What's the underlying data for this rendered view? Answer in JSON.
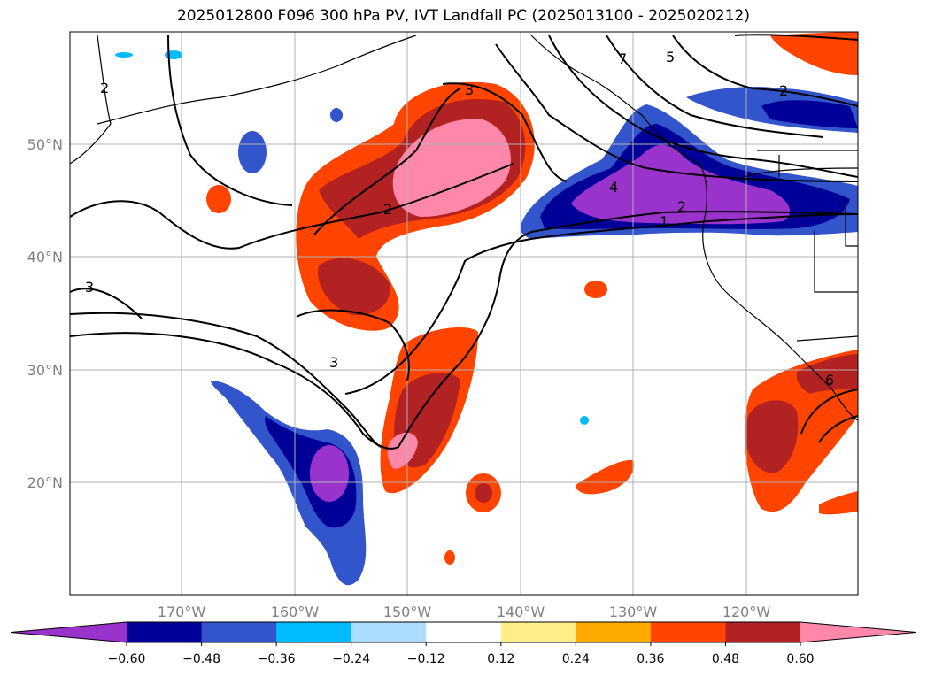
{
  "title": "2025012800 F096 300 hPa PV, IVT Landfall PC (2025013100 - 2025020212)",
  "lon_ticks": [
    "170°W",
    "160°W",
    "150°W",
    "140°W",
    "130°W",
    "120°W"
  ],
  "lat_ticks": [
    "50°N",
    "40°N",
    "30°N",
    "20°N"
  ],
  "contour_labels": [
    "3",
    "2",
    "2",
    "4",
    "2",
    "1",
    "3",
    "3",
    "5",
    "2",
    "7",
    "6"
  ],
  "colorbar": {
    "ticks": [
      "−0.60",
      "−0.48",
      "−0.36",
      "−0.24",
      "−0.12",
      "0.12",
      "0.24",
      "0.36",
      "0.48",
      "0.60"
    ],
    "colors": [
      "#9933cc",
      "#000099",
      "#3355cc",
      "#00bbff",
      "#aaddff",
      "#ffffff",
      "#ffee88",
      "#ffaa00",
      "#ff4400",
      "#b22222",
      "#ff88aa"
    ]
  }
}
